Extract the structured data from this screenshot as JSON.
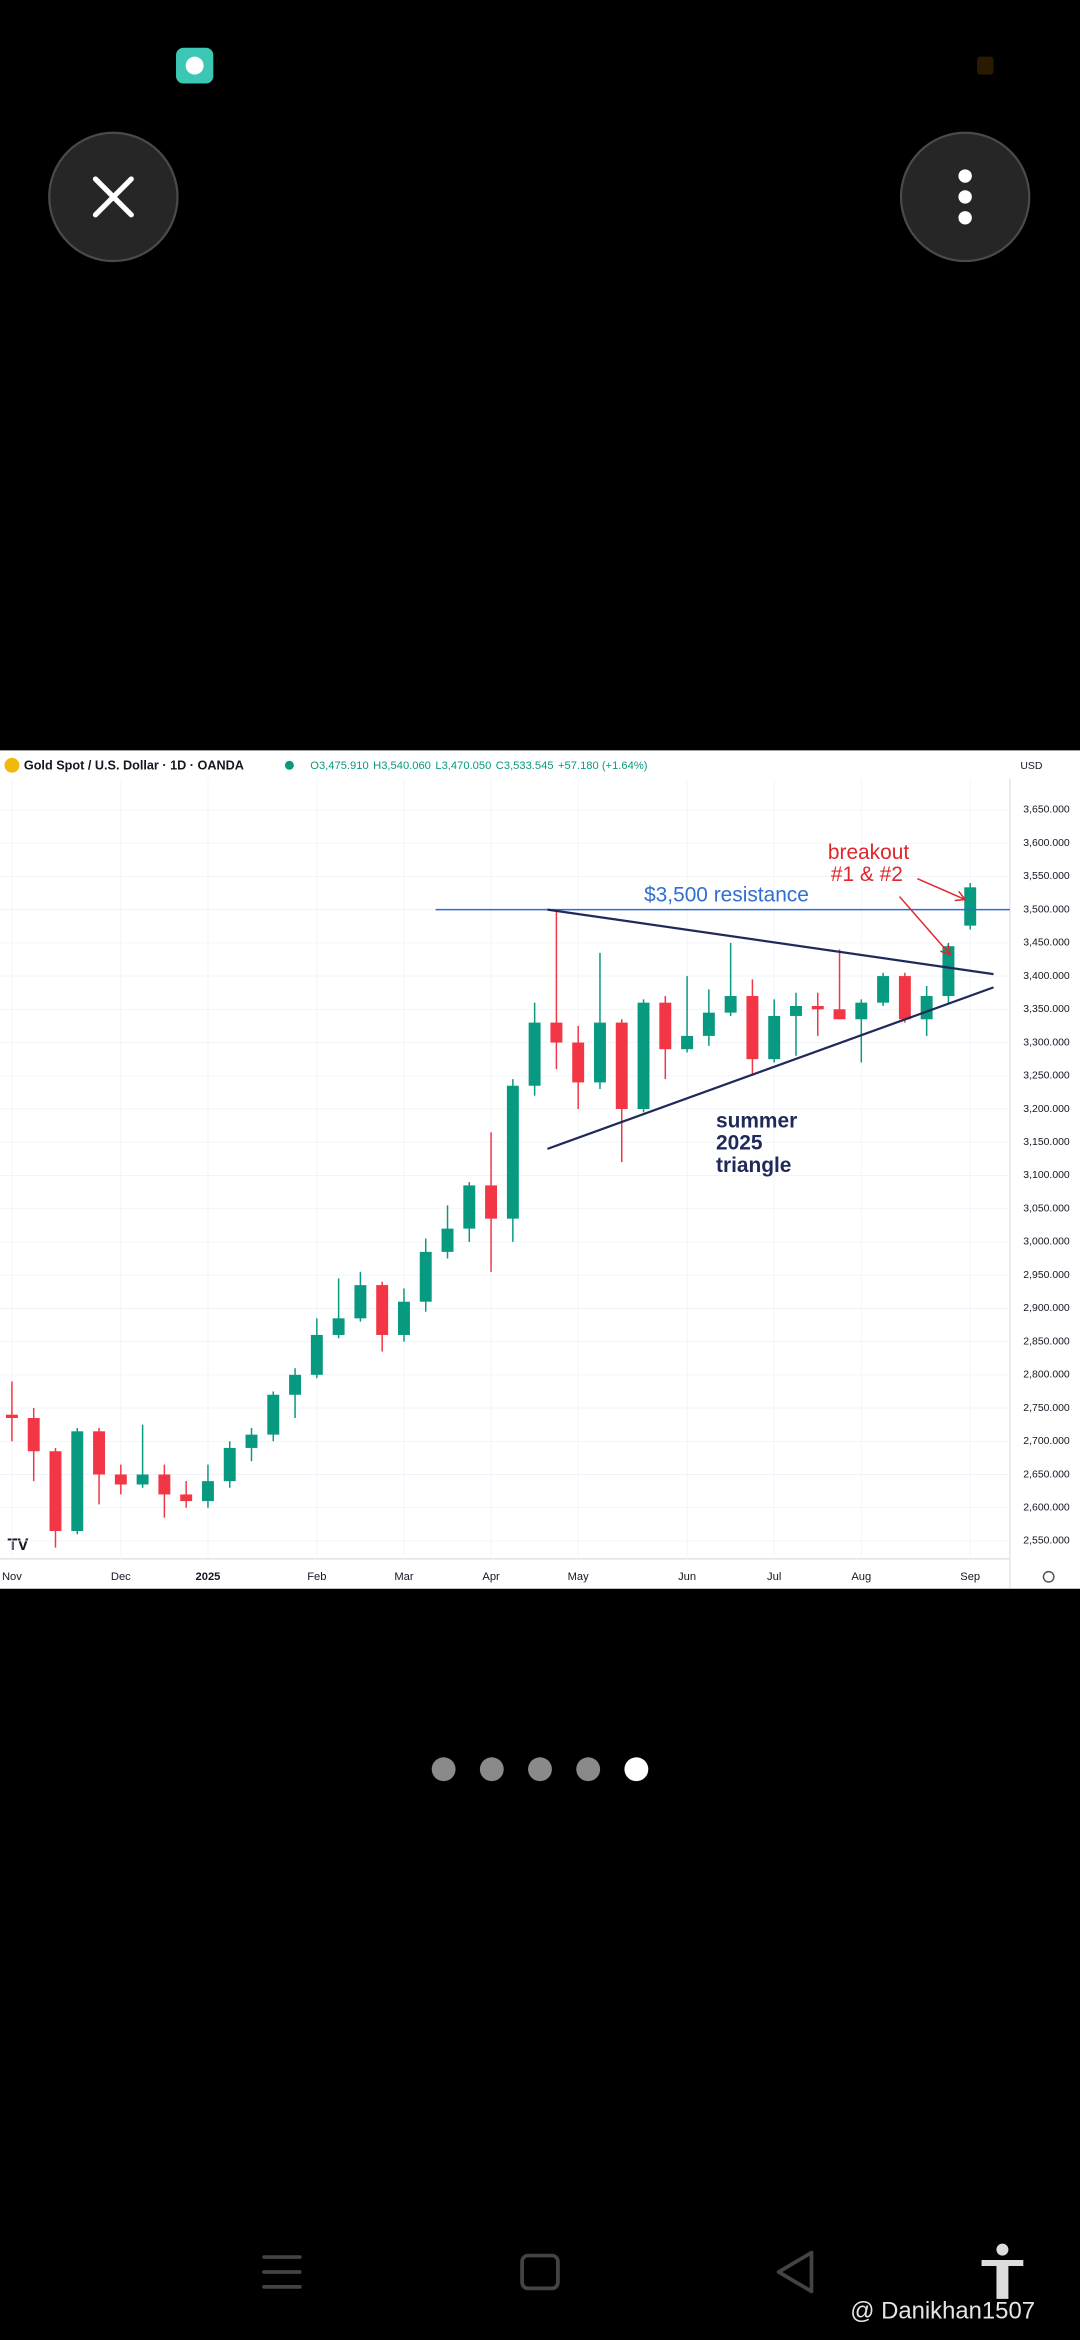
{
  "chart_data": {
    "type": "candlestick",
    "title": "Gold Spot / U.S. Dollar · 1D · OANDA",
    "quote": [
      "O3,475.910",
      "H3,540.060",
      "L3,470.050",
      "C3,533.545",
      "+57.180 (+1.64%)"
    ],
    "currency": "USD",
    "categories": [
      "Nov",
      null,
      null,
      null,
      null,
      "Dec",
      null,
      null,
      null,
      "2025",
      null,
      null,
      null,
      null,
      "Feb",
      null,
      null,
      null,
      "Mar",
      null,
      null,
      null,
      "Apr",
      null,
      null,
      null,
      "May",
      null,
      null,
      null,
      null,
      "Jun",
      null,
      null,
      null,
      "Jul",
      null,
      null,
      null,
      "Aug",
      null,
      null,
      null,
      null,
      "Sep"
    ],
    "open": [
      2740,
      2735,
      2685,
      2565,
      2715,
      2650,
      2635,
      2650,
      2620,
      2610,
      2640,
      2690,
      2710,
      2770,
      2800,
      2860,
      2885,
      2935,
      2860,
      2910,
      2985,
      3020,
      3085,
      3035,
      3235,
      3330,
      3300,
      3240,
      3330,
      3200,
      3360,
      3290,
      3310,
      3345,
      3370,
      3275,
      3340,
      3355,
      3350,
      3335,
      3360,
      3400,
      3335,
      3370,
      3475.91
    ],
    "high": [
      2790,
      2750,
      2690,
      2720,
      2720,
      2665,
      2725,
      2665,
      2640,
      2665,
      2700,
      2720,
      2775,
      2810,
      2885,
      2945,
      2955,
      2940,
      2930,
      3005,
      3055,
      3090,
      3165,
      3245,
      3360,
      3500,
      3325,
      3435,
      3335,
      3365,
      3370,
      3400,
      3380,
      3450,
      3395,
      3365,
      3375,
      3375,
      3440,
      3365,
      3405,
      3405,
      3385,
      3450,
      3540.06
    ],
    "low": [
      2700,
      2640,
      2540,
      2560,
      2605,
      2620,
      2630,
      2585,
      2600,
      2600,
      2630,
      2670,
      2700,
      2735,
      2795,
      2855,
      2880,
      2835,
      2850,
      2895,
      2975,
      3000,
      2955,
      3000,
      3220,
      3260,
      3200,
      3230,
      3120,
      3195,
      3245,
      3285,
      3295,
      3340,
      3250,
      3270,
      3280,
      3310,
      3335,
      3270,
      3355,
      3330,
      3310,
      3360,
      3470.05
    ],
    "close": [
      2735,
      2685,
      2565,
      2715,
      2650,
      2635,
      2650,
      2620,
      2610,
      2640,
      2690,
      2710,
      2770,
      2800,
      2860,
      2885,
      2935,
      2860,
      2910,
      2985,
      3020,
      3085,
      3035,
      3235,
      3330,
      3300,
      3240,
      3330,
      3200,
      3360,
      3290,
      3310,
      3345,
      3370,
      3275,
      3340,
      3355,
      3350,
      3335,
      3360,
      3400,
      3335,
      3370,
      3445,
      3533.545
    ],
    "up_color": "#089981",
    "down_color": "#f23645",
    "ylim": [
      2523,
      3697
    ],
    "yticks": [
      {
        "value": 2550,
        "label": "2,550.000"
      },
      {
        "value": 2600,
        "label": "2,600.000"
      },
      {
        "value": 2650,
        "label": "2,650.000"
      },
      {
        "value": 2700,
        "label": "2,700.000"
      },
      {
        "value": 2750,
        "label": "2,750.000"
      },
      {
        "value": 2800,
        "label": "2,800.000"
      },
      {
        "value": 2850,
        "label": "2,850.000"
      },
      {
        "value": 2900,
        "label": "2,900.000"
      },
      {
        "value": 2950,
        "label": "2,950.000"
      },
      {
        "value": 3000,
        "label": "3,000.000"
      },
      {
        "value": 3050,
        "label": "3,050.000"
      },
      {
        "value": 3100,
        "label": "3,100.000"
      },
      {
        "value": 3150,
        "label": "3,150.000"
      },
      {
        "value": 3200,
        "label": "3,200.000"
      },
      {
        "value": 3250,
        "label": "3,250.000"
      },
      {
        "value": 3300,
        "label": "3,300.000"
      },
      {
        "value": 3350,
        "label": "3,350.000"
      },
      {
        "value": 3400,
        "label": "3,400.000"
      },
      {
        "value": 3450,
        "label": "3,450.000"
      },
      {
        "value": 3500,
        "label": "3,500.000"
      },
      {
        "value": 3550,
        "label": "3,550.000"
      },
      {
        "value": 3600,
        "label": "3,600.000"
      },
      {
        "value": 3650,
        "label": "3,650.000"
      }
    ],
    "grid": true,
    "resistance": {
      "value": 3500,
      "label": "$3,500 resistance",
      "color": "#2f6fd0"
    },
    "triangle": {
      "upper": [
        3500,
        3403
      ],
      "lower": [
        3140,
        3383
      ],
      "color": "#1f2a5a",
      "label": [
        "summer",
        "2025",
        "triangle"
      ]
    },
    "breakout": {
      "label": [
        "breakout",
        "#1 & #2"
      ],
      "color": "#e0252b"
    }
  },
  "pager": {
    "count": 5,
    "active": 4
  },
  "watermark": "@ Danikhan1507"
}
